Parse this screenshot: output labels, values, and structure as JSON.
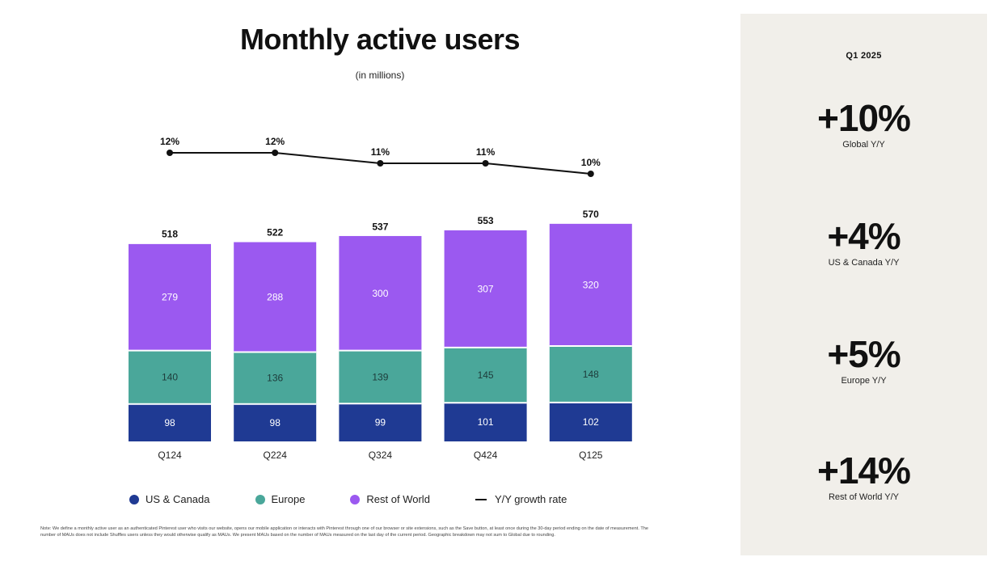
{
  "header": {
    "title": "Monthly active users",
    "subtitle": "(in millions)"
  },
  "chart_data": {
    "type": "bar",
    "stacked": true,
    "categories": [
      "Q124",
      "Q224",
      "Q324",
      "Q424",
      "Q125"
    ],
    "series": [
      {
        "name": "US & Canada",
        "color": "#1f3a93",
        "values": [
          98,
          98,
          99,
          101,
          102
        ]
      },
      {
        "name": "Europe",
        "color": "#4aa79a",
        "values": [
          140,
          136,
          139,
          145,
          148
        ]
      },
      {
        "name": "Rest of World",
        "color": "#9b59f0",
        "values": [
          279,
          288,
          300,
          307,
          320
        ]
      }
    ],
    "totals": [
      518,
      522,
      537,
      553,
      570
    ],
    "growth_line": {
      "name": "Y/Y growth rate",
      "color": "#111111",
      "values": [
        12,
        12,
        11,
        11,
        10
      ],
      "labels": [
        "12%",
        "12%",
        "11%",
        "11%",
        "10%"
      ]
    },
    "legend_position": "bottom",
    "grid": false
  },
  "legend": {
    "us_canada": "US & Canada",
    "europe": "Europe",
    "rest_of_world": "Rest of World",
    "growth": "Y/Y growth rate"
  },
  "note": "Note: We define a monthly active user as an authenticated Pinterest user who visits our website, opens our mobile application or interacts with Pinterest through one of our browser or site extensions, such as the Save button, at least once during the 30-day period ending on the date of measurement. The number of MAUs does not include Shuffles users unless they would otherwise qualify as MAUs. We present MAUs based on the number of MAUs measured on the last day of the current period. Geographic breakdown may not sum to Global due to rounding.",
  "side": {
    "period": "Q1 2025",
    "kpis": [
      {
        "value": "+10%",
        "label": "Global Y/Y"
      },
      {
        "value": "+4%",
        "label": "US & Canada Y/Y"
      },
      {
        "value": "+5%",
        "label": "Europe Y/Y"
      },
      {
        "value": "+14%",
        "label": "Rest of World Y/Y"
      }
    ]
  }
}
